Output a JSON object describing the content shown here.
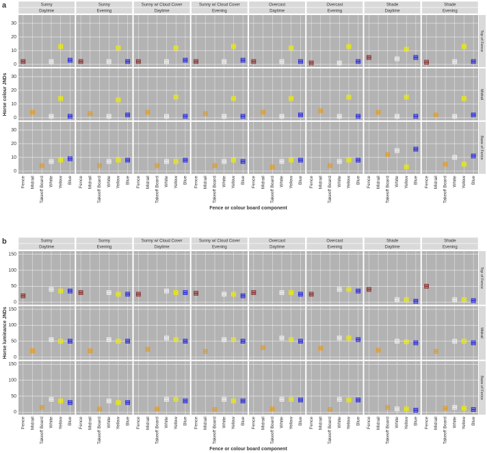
{
  "chart_data": [
    {
      "type": "box",
      "label": "a",
      "y_label": "Horse colour JNDs",
      "x_label": "Fence or colour board component",
      "columns": [
        {
          "condition": "Sunny",
          "time": "Daytime"
        },
        {
          "condition": "Sunny",
          "time": "Evening"
        },
        {
          "condition": "Sunny w/ Cloud Cover",
          "time": "Daytime"
        },
        {
          "condition": "Sunny w/ Cloud Cover",
          "time": "Evening"
        },
        {
          "condition": "Overcast",
          "time": "Daytime"
        },
        {
          "condition": "Overcast",
          "time": "Evening"
        },
        {
          "condition": "Shade",
          "time": "Daytime"
        },
        {
          "condition": "Shade",
          "time": "Evening"
        }
      ],
      "rows": [
        "Top of Fence",
        "Midrail",
        "Base of Fence"
      ],
      "categories": [
        "Fence",
        "Midrail",
        "Takeoff Board",
        "White",
        "Yellow",
        "Blue"
      ],
      "colors": [
        "#8b2a2a",
        "#e39b1f",
        "#e39b1f",
        "#f2f2f2",
        "#f0f000",
        "#2323e0"
      ],
      "ylim": [
        -2,
        36
      ],
      "yticks": [
        0,
        10,
        20,
        30
      ],
      "grid": true,
      "values": [
        [
          [
            2,
            null,
            null,
            2,
            13,
            3
          ],
          [
            2,
            null,
            null,
            2,
            12,
            2
          ],
          [
            2,
            null,
            null,
            2,
            12,
            3
          ],
          [
            2,
            null,
            null,
            2,
            13,
            3
          ],
          [
            2,
            null,
            null,
            2,
            12,
            2
          ],
          [
            1,
            null,
            null,
            1,
            13,
            2
          ],
          [
            5,
            null,
            null,
            4,
            11,
            5
          ],
          [
            1.5,
            null,
            null,
            2,
            13,
            2
          ]
        ],
        [
          [
            null,
            4,
            null,
            1,
            14,
            1
          ],
          [
            null,
            3,
            null,
            1,
            13,
            2
          ],
          [
            null,
            4,
            null,
            1,
            15,
            1
          ],
          [
            null,
            3,
            null,
            1,
            14,
            1
          ],
          [
            null,
            4,
            null,
            1,
            14,
            2
          ],
          [
            null,
            5,
            null,
            1,
            15,
            1
          ],
          [
            null,
            4,
            null,
            1,
            15,
            1
          ],
          [
            null,
            2,
            null,
            1,
            14,
            2
          ]
        ],
        [
          [
            null,
            null,
            4,
            7,
            8,
            9
          ],
          [
            null,
            null,
            4,
            7,
            8,
            8
          ],
          [
            null,
            null,
            4,
            7,
            7,
            8
          ],
          [
            null,
            null,
            4,
            7,
            8,
            7
          ],
          [
            null,
            null,
            3,
            7,
            8,
            8
          ],
          [
            null,
            null,
            4,
            7,
            8,
            8
          ],
          [
            null,
            null,
            12,
            15,
            3,
            16
          ],
          [
            null,
            null,
            5,
            10,
            5,
            11
          ]
        ]
      ]
    },
    {
      "type": "box",
      "label": "b",
      "y_label": "Horse luminance JNDs",
      "x_label": "Fence or colour board component",
      "columns": [
        {
          "condition": "Sunny",
          "time": "Daytime"
        },
        {
          "condition": "Sunny",
          "time": "Evening"
        },
        {
          "condition": "Sunny w/ Cloud Cover",
          "time": "Daytime"
        },
        {
          "condition": "Sunny w/ Cloud Cover",
          "time": "Evening"
        },
        {
          "condition": "Overcast",
          "time": "Daytime"
        },
        {
          "condition": "Overcast",
          "time": "Evening"
        },
        {
          "condition": "Shade",
          "time": "Daytime"
        },
        {
          "condition": "Shade",
          "time": "Evening"
        }
      ],
      "rows": [
        "Top of Fence",
        "Midrail",
        "Base of Fence"
      ],
      "categories": [
        "Fence",
        "Midrail",
        "Takeoff Board",
        "White",
        "Yellow",
        "Blue"
      ],
      "colors": [
        "#8b2a2a",
        "#e39b1f",
        "#e39b1f",
        "#f2f2f2",
        "#f0f000",
        "#2323e0"
      ],
      "ylim": [
        -8,
        160
      ],
      "yticks": [
        0,
        50,
        100,
        150
      ],
      "grid": true,
      "values": [
        [
          [
            20,
            null,
            null,
            40,
            35,
            35
          ],
          [
            30,
            null,
            null,
            30,
            25,
            25
          ],
          [
            25,
            null,
            null,
            35,
            30,
            30
          ],
          [
            28,
            null,
            null,
            25,
            25,
            20
          ],
          [
            30,
            null,
            null,
            30,
            30,
            25
          ],
          [
            25,
            null,
            null,
            40,
            40,
            35
          ],
          [
            40,
            null,
            null,
            8,
            8,
            3
          ],
          [
            50,
            null,
            null,
            8,
            8,
            5
          ]
        ],
        [
          [
            null,
            20,
            null,
            55,
            50,
            50
          ],
          [
            null,
            20,
            null,
            55,
            50,
            50
          ],
          [
            null,
            25,
            null,
            60,
            55,
            50
          ],
          [
            null,
            18,
            null,
            55,
            55,
            50
          ],
          [
            null,
            30,
            null,
            60,
            55,
            50
          ],
          [
            null,
            28,
            null,
            60,
            60,
            55
          ],
          [
            null,
            22,
            null,
            50,
            48,
            45
          ],
          [
            null,
            18,
            null,
            50,
            50,
            45
          ]
        ],
        [
          [
            null,
            null,
            15,
            40,
            35,
            30
          ],
          [
            null,
            null,
            10,
            35,
            30,
            30
          ],
          [
            null,
            null,
            10,
            40,
            40,
            35
          ],
          [
            null,
            null,
            8,
            40,
            35,
            35
          ],
          [
            null,
            null,
            10,
            40,
            40,
            38
          ],
          [
            null,
            null,
            8,
            40,
            38,
            38
          ],
          [
            null,
            null,
            15,
            10,
            10,
            6
          ],
          [
            null,
            null,
            12,
            15,
            12,
            8
          ]
        ]
      ]
    }
  ]
}
